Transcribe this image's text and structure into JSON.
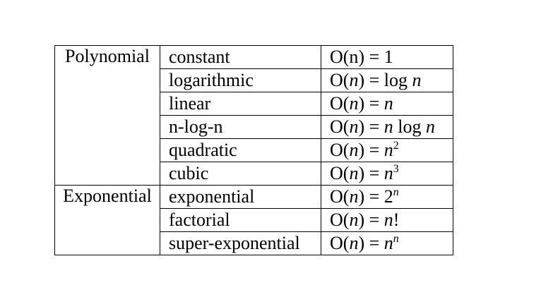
{
  "groups": [
    {
      "label": "Polynomial",
      "rows": [
        {
          "name": "constant",
          "formula": [
            "O(n) = 1"
          ]
        },
        {
          "name": "logarithmic",
          "formula": [
            "O(",
            {
              "text": "n",
              "italic": true
            },
            ") = log ",
            {
              "text": "n",
              "italic": true
            }
          ]
        },
        {
          "name": "linear",
          "formula": [
            "O(",
            {
              "text": "n",
              "italic": true
            },
            ") = ",
            {
              "text": "n",
              "italic": true
            }
          ]
        },
        {
          "name": "n-log-n",
          "formula": [
            "O(",
            {
              "text": "n",
              "italic": true
            },
            ") = ",
            {
              "text": "n",
              "italic": true
            },
            " log ",
            {
              "text": "n",
              "italic": true
            }
          ]
        },
        {
          "name": "quadratic",
          "formula": [
            "O(",
            {
              "text": "n",
              "italic": true
            },
            ") = ",
            {
              "text": "n",
              "italic": true
            },
            {
              "text": "2",
              "sup": true
            }
          ]
        },
        {
          "name": "cubic",
          "formula": [
            "O(",
            {
              "text": "n",
              "italic": true
            },
            ") = ",
            {
              "text": "n",
              "italic": true
            },
            {
              "text": "3",
              "sup": true
            }
          ]
        }
      ]
    },
    {
      "label": "Exponential",
      "rows": [
        {
          "name": "exponential",
          "formula": [
            "O(",
            {
              "text": "n",
              "italic": true
            },
            ") = 2",
            {
              "text": "n",
              "italic": true,
              "sup": true
            }
          ]
        },
        {
          "name": "factorial",
          "formula": [
            "O(",
            {
              "text": "n",
              "italic": true
            },
            ") = ",
            {
              "text": "n",
              "italic": true
            },
            "!"
          ]
        },
        {
          "name": "super-exponential",
          "formula": [
            "O(",
            {
              "text": "n",
              "italic": true
            },
            ") = ",
            {
              "text": "n",
              "italic": true
            },
            {
              "text": "n",
              "italic": true,
              "sup": true
            }
          ]
        }
      ]
    }
  ]
}
